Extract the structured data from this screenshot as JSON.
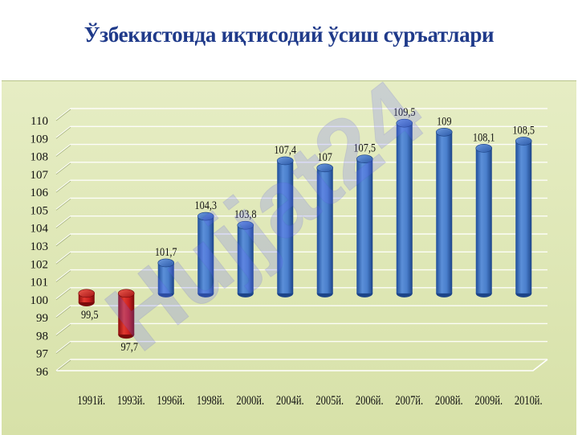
{
  "title": "Ўзбекистонда иқтисодий ўсиш суръатлари",
  "watermark": "Hujjat24",
  "colors": {
    "title": "#1f3a8a",
    "panel": "#dfe8b8",
    "growth_bar": "#3d74c5",
    "decline_bar": "#c8191a",
    "watermark": "#6b6bff"
  },
  "chart_data": {
    "type": "bar",
    "categories": [
      "1991й.",
      "1993й.",
      "1996й.",
      "1998й.",
      "2000й.",
      "2004й.",
      "2005й.",
      "2006й.",
      "2007й.",
      "2008й.",
      "2009й.",
      "2010й."
    ],
    "values": [
      99.5,
      97.7,
      101.7,
      104.3,
      103.8,
      107.4,
      107,
      107.5,
      109.5,
      109,
      108.1,
      108.5
    ],
    "data_labels": [
      "99,5",
      "97,7",
      "101,7",
      "104,3",
      "103,8",
      "107,4",
      "107",
      "107,5",
      "109,5",
      "109",
      "108,1",
      "108,5"
    ],
    "baseline": 100,
    "ylim": [
      96,
      110
    ],
    "yticks": [
      96,
      97,
      98,
      99,
      100,
      101,
      102,
      103,
      104,
      105,
      106,
      107,
      108,
      109,
      110
    ],
    "grid": true,
    "legend": "none",
    "xlabel": "",
    "ylabel": ""
  }
}
